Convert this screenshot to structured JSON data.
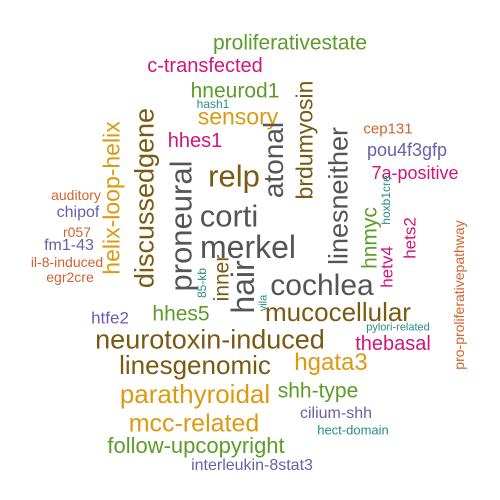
{
  "words": [
    "proliferativestate",
    "c-transfected",
    "hneurod1",
    "hash1",
    "sensory",
    "hhes1",
    "relp",
    "corti",
    "merkel",
    "proneural",
    "discussedgene",
    "helix-loop-helix",
    "atonal",
    "brdumyosin",
    "linesneither",
    "hnmyc",
    "cep131",
    "pou4f3gfp",
    "7a-positive",
    "hoxb1cre",
    "hetv4",
    "hets2",
    "pro-proliferativepathway",
    "auditory",
    "chipof",
    "r057",
    "fm1-43",
    "il-8-induced",
    "egr2cre",
    "85-kb",
    "inner",
    "hair",
    "vila",
    "cochlea",
    "htfe2",
    "hhes5",
    "mucocellular",
    "pylori-related",
    "neurotoxin-induced",
    "thebasal",
    "linesgenomic",
    "hgata3",
    "parathyroidal",
    "shh-type",
    "mcc-related",
    "cilium-shh",
    "hect-domain",
    "follow-upcopyright",
    "interleukin-8stat3"
  ]
}
